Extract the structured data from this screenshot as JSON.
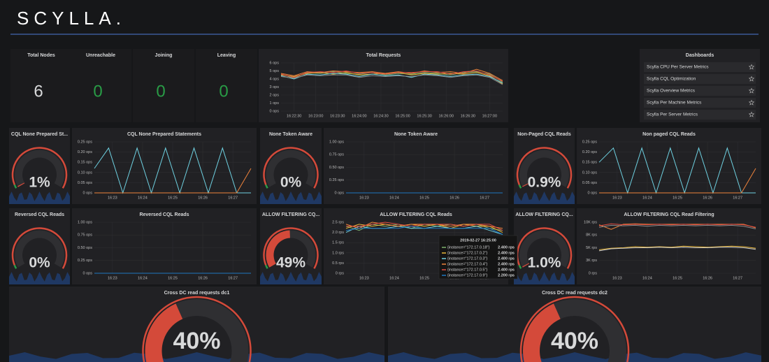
{
  "header": {
    "logo": "SCYLLA."
  },
  "stats": [
    {
      "title": "Total Nodes",
      "value": 6,
      "color": "#d8d9da"
    },
    {
      "title": "Unreachable",
      "value": 0,
      "color": "#299c46"
    },
    {
      "title": "Joining",
      "value": 0,
      "color": "#299c46"
    },
    {
      "title": "Leaving",
      "value": 0,
      "color": "#299c46"
    }
  ],
  "graphs": [
    {
      "title": "Total Requests",
      "yticks": [
        {
          "value": 0,
          "label": "0 ops"
        },
        {
          "value": 1,
          "label": "1 ops"
        },
        {
          "value": 2,
          "label": "2 ops"
        },
        {
          "value": 3,
          "label": "3 ops"
        },
        {
          "value": 4,
          "label": "4 ops"
        },
        {
          "value": 5,
          "label": "5 ops"
        },
        {
          "value": 6,
          "label": "6 ops"
        }
      ],
      "xticks": [
        "16:22:30",
        "16:23:00",
        "16:23:30",
        "16:24:00",
        "16:24:30",
        "16:25:00",
        "16:25:30",
        "16:26:00",
        "16:26:30",
        "16:27:00"
      ],
      "series": [
        {
          "color": "#7eb26d",
          "values": [
            4.6,
            4.1,
            4.8,
            4.7,
            4.9,
            4.7,
            4.6,
            4.8,
            4.5,
            4.7,
            4.6,
            4.8,
            4.7,
            4.5,
            4.8,
            4.9,
            4.6,
            3.6
          ]
        },
        {
          "color": "#eab839",
          "values": [
            4.5,
            4.3,
            4.7,
            4.8,
            4.6,
            4.8,
            4.5,
            4.6,
            4.7,
            4.8,
            4.5,
            4.7,
            4.6,
            4.7,
            4.6,
            4.8,
            4.4,
            3.4
          ]
        },
        {
          "color": "#6ed0e0",
          "values": [
            4.4,
            4.0,
            4.6,
            4.5,
            4.7,
            4.6,
            4.3,
            4.6,
            4.4,
            4.5,
            4.2,
            4.6,
            4.5,
            4.3,
            4.5,
            4.6,
            4.3,
            3.5
          ]
        },
        {
          "color": "#ef843c",
          "values": [
            4.7,
            4.4,
            4.9,
            4.8,
            5.0,
            4.9,
            4.8,
            4.9,
            4.7,
            4.9,
            4.7,
            5.0,
            4.8,
            4.9,
            4.7,
            5.2,
            4.7,
            3.8
          ]
        },
        {
          "color": "#e24d42",
          "values": [
            4.6,
            4.2,
            4.8,
            4.9,
            4.8,
            5.0,
            4.7,
            4.8,
            4.6,
            4.8,
            4.8,
            4.9,
            4.9,
            4.6,
            4.9,
            5.0,
            4.5,
            3.7
          ]
        },
        {
          "color": "#8a8a8a",
          "values": [
            4.3,
            4.1,
            4.5,
            4.4,
            4.5,
            4.5,
            4.2,
            4.4,
            4.3,
            4.4,
            4.3,
            4.5,
            4.4,
            4.2,
            4.4,
            4.5,
            4.2,
            3.3
          ]
        }
      ]
    },
    {
      "title": "CQL None Prepared Statements",
      "yticks": [
        {
          "value": 0,
          "label": "0 ops"
        },
        {
          "value": 0.05,
          "label": "0.05 ops"
        },
        {
          "value": 0.1,
          "label": "0.10 ops"
        },
        {
          "value": 0.15,
          "label": "0.15 ops"
        },
        {
          "value": 0.2,
          "label": "0.20 ops"
        },
        {
          "value": 0.25,
          "label": "0.25 ops"
        }
      ],
      "xticks": [
        "16:23",
        "16:24",
        "16:25",
        "16:26",
        "16:27"
      ],
      "series": [
        {
          "color": "#6ed0e0",
          "values": [
            0.12,
            0.22,
            0,
            0.22,
            0,
            0.22,
            0,
            0.22,
            0,
            0.22,
            0,
            0
          ]
        },
        {
          "color": "#ef843c",
          "values": [
            0,
            0,
            0,
            0,
            0,
            0,
            0,
            0,
            0,
            0,
            0,
            0.12
          ]
        }
      ]
    },
    {
      "title": "None Token Aware",
      "yticks": [
        {
          "value": 0,
          "label": "0 ops"
        },
        {
          "value": 0.25,
          "label": "0.25 ops"
        },
        {
          "value": 0.5,
          "label": "0.50 ops"
        },
        {
          "value": 0.75,
          "label": "0.75 ops"
        },
        {
          "value": 1,
          "label": "1.00 ops"
        }
      ],
      "xticks": [
        "16:23",
        "16:24",
        "16:25",
        "16:26",
        "16:27"
      ],
      "series": [
        {
          "color": "#1f78c1",
          "values": [
            0,
            0,
            0,
            0,
            0,
            0,
            0,
            0,
            0,
            0,
            0,
            0
          ]
        }
      ]
    },
    {
      "title": "Non paged CQL Reads",
      "yticks": [
        {
          "value": 0,
          "label": "0 ops"
        },
        {
          "value": 0.05,
          "label": "0.05 ops"
        },
        {
          "value": 0.1,
          "label": "0.10 ops"
        },
        {
          "value": 0.15,
          "label": "0.15 ops"
        },
        {
          "value": 0.2,
          "label": "0.20 ops"
        },
        {
          "value": 0.25,
          "label": "0.25 ops"
        }
      ],
      "xticks": [
        "16:23",
        "16:24",
        "16:25",
        "16:26",
        "16:27"
      ],
      "series": [
        {
          "color": "#6ed0e0",
          "values": [
            0.15,
            0.22,
            0,
            0.22,
            0,
            0.22,
            0,
            0.22,
            0,
            0.22,
            0,
            0
          ]
        },
        {
          "color": "#ef843c",
          "values": [
            0,
            0,
            0,
            0,
            0,
            0,
            0,
            0,
            0,
            0,
            0,
            0.12
          ]
        }
      ]
    },
    {
      "title": "Reversed CQL Reads",
      "yticks": [
        {
          "value": 0,
          "label": "0 ops"
        },
        {
          "value": 0.25,
          "label": "0.25 ops"
        },
        {
          "value": 0.5,
          "label": "0.50 ops"
        },
        {
          "value": 0.75,
          "label": "0.75 ops"
        },
        {
          "value": 1,
          "label": "1.00 ops"
        }
      ],
      "xticks": [
        "16:23",
        "16:24",
        "16:25",
        "16:26",
        "16:27"
      ],
      "series": [
        {
          "color": "#1f78c1",
          "values": [
            0,
            0,
            0,
            0,
            0,
            0,
            0,
            0,
            0,
            0,
            0,
            0
          ]
        }
      ]
    },
    {
      "title": "ALLOW FILTERING CQL Reads",
      "yticks": [
        {
          "value": 0,
          "label": "0 rps"
        },
        {
          "value": 0.5,
          "label": "0.5 rps"
        },
        {
          "value": 1,
          "label": "1.0 rps"
        },
        {
          "value": 1.5,
          "label": "1.5 rps"
        },
        {
          "value": 2,
          "label": "2.0 rps"
        },
        {
          "value": 2.5,
          "label": "2.5 rps"
        }
      ],
      "xticks": [
        "16:23",
        "16:24",
        "16:25",
        "16:26",
        "16:27"
      ],
      "series": [
        {
          "color": "#7eb26d",
          "values": [
            2.3,
            2.1,
            2.4,
            2.3,
            2.4,
            2.2,
            2.4,
            2.3,
            2.4,
            2.3,
            2.4,
            2.2,
            2.1
          ]
        },
        {
          "color": "#eab839",
          "values": [
            2.2,
            2.4,
            2.3,
            2.4,
            2.3,
            2.4,
            2.3,
            2.4,
            2.2,
            2.4,
            2.3,
            2.3,
            2.0
          ]
        },
        {
          "color": "#6ed0e0",
          "values": [
            2.0,
            2.3,
            2.2,
            2.2,
            2.3,
            2.2,
            2.2,
            2.3,
            2.2,
            2.2,
            2.3,
            2.1,
            1.9
          ]
        },
        {
          "color": "#ef843c",
          "values": [
            2.4,
            2.2,
            2.5,
            2.4,
            2.3,
            2.4,
            2.4,
            2.4,
            2.3,
            2.4,
            2.4,
            2.3,
            2.2
          ]
        },
        {
          "color": "#e24d42",
          "values": [
            2.3,
            2.3,
            2.4,
            2.5,
            2.4,
            2.3,
            2.4,
            2.4,
            2.4,
            2.3,
            2.4,
            2.4,
            2.1
          ]
        },
        {
          "color": "#1f78c1",
          "values": [
            2.1,
            2.2,
            2.2,
            2.2,
            2.2,
            2.3,
            2.2,
            2.2,
            2.2,
            2.2,
            2.2,
            2.2,
            1.9
          ]
        }
      ]
    },
    {
      "title": "ALLOW FILTERING CQL Read Filtering",
      "yticks": [
        {
          "value": 0,
          "label": "0 rps"
        },
        {
          "value": 2500,
          "label": "3K rps"
        },
        {
          "value": 5000,
          "label": "5K rps"
        },
        {
          "value": 7500,
          "label": "8K rps"
        },
        {
          "value": 10000,
          "label": "10K rps"
        }
      ],
      "xticks": [
        "16:23",
        "16:24",
        "16:25",
        "16:26",
        "16:27"
      ],
      "series": [
        {
          "color": "#ef843c",
          "values": [
            9500,
            8600,
            9600,
            9700,
            9600,
            9600,
            9600,
            9600,
            9600,
            9600,
            9600,
            9600,
            9600,
            8900
          ]
        },
        {
          "color": "#e24d42",
          "values": [
            9300,
            9700,
            9500,
            9600,
            9500,
            9600,
            9500,
            9600,
            9500,
            9600,
            9500,
            9600,
            9500,
            9000
          ]
        },
        {
          "color": "#8a8a8a",
          "values": [
            9000,
            9400,
            9300,
            9400,
            9200,
            9400,
            9300,
            9400,
            9300,
            9400,
            9300,
            9400,
            9200,
            8700
          ]
        },
        {
          "color": "#eab839",
          "values": [
            4600,
            4900,
            5000,
            5200,
            5100,
            5200,
            5100,
            5300,
            5200,
            5100,
            5200,
            5300,
            5200,
            4900
          ]
        },
        {
          "color": "#cccccc",
          "values": [
            4400,
            4800,
            4900,
            5000,
            5000,
            5100,
            5000,
            5100,
            5000,
            5000,
            5100,
            5100,
            5000,
            4700
          ]
        }
      ]
    }
  ],
  "gauges": [
    {
      "title": "CQL None Prepared St...",
      "value": 1,
      "label": "1%"
    },
    {
      "title": "None Token Aware",
      "value": 0,
      "label": "0%"
    },
    {
      "title": "Non-Paged CQL Reads",
      "value": 0.9,
      "label": "0.9%"
    },
    {
      "title": "Reversed CQL Reads",
      "value": 0,
      "label": "0%"
    },
    {
      "title": "ALLOW FILTERING CQ...",
      "value": 49,
      "label": "49%"
    },
    {
      "title": "ALLOW FILTERING CQ...",
      "value": 1.0,
      "label": "1.0%"
    },
    {
      "title": "Cross DC read requests dc1",
      "value": 40,
      "label": "40%"
    },
    {
      "title": "Cross DC read requests dc2",
      "value": 40,
      "label": "40%"
    }
  ],
  "dashboards": {
    "title": "Dashboards",
    "items": [
      "Scylla CPU Per Server Metrics",
      "Scylla CQL Optimization",
      "Scylla Overview Metrics",
      "Scylla Per Machine Metrics",
      "Scylla Per Server Metrics"
    ]
  },
  "tooltip": {
    "time": "2019-02-27 16:25:00",
    "rows": [
      {
        "label": "{instance=\"172.17.0.18\"}",
        "value": "2.400 rps",
        "color": "#7eb26d"
      },
      {
        "label": "{instance=\"172.17.0.2\"}",
        "value": "2.400 rps",
        "color": "#eab839"
      },
      {
        "label": "{instance=\"172.17.0.3\"}",
        "value": "2.400 rps",
        "color": "#6ed0e0"
      },
      {
        "label": "{instance=\"172.17.0.4\"}",
        "value": "2.400 rps",
        "color": "#ef843c"
      },
      {
        "label": "{instance=\"172.17.0.5\"}",
        "value": "2.400 rps",
        "color": "#e24d42"
      },
      {
        "label": "{instance=\"172.17.0.9\"}",
        "value": "2.200 rps",
        "color": "#1f78c1"
      }
    ]
  }
}
